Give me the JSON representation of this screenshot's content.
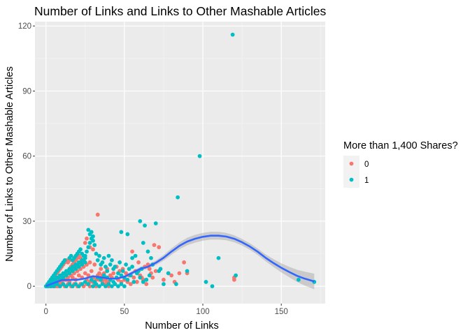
{
  "chart_data": {
    "type": "scatter",
    "title": "Number of Links and Links to Other Mashable Articles",
    "xlabel": "Number of Links",
    "ylabel": "Number of Links to Other Mashable Articles",
    "xlim": [
      -7,
      178
    ],
    "ylim": [
      -8,
      122
    ],
    "x_ticks": [
      0,
      50,
      100,
      150
    ],
    "y_ticks": [
      0,
      30,
      60,
      90,
      120
    ],
    "grid": true,
    "legend": {
      "title": "More than 1,400 Shares?",
      "position": "right",
      "entries": [
        {
          "label": "0",
          "color": "#F8766D"
        },
        {
          "label": "1",
          "color": "#00BFC4"
        }
      ]
    },
    "series": [
      {
        "name": "0",
        "color": "#F8766D",
        "points": [
          [
            1,
            0
          ],
          [
            2,
            1
          ],
          [
            3,
            2
          ],
          [
            4,
            3
          ],
          [
            5,
            4
          ],
          [
            6,
            5
          ],
          [
            7,
            6
          ],
          [
            8,
            7
          ],
          [
            9,
            8
          ],
          [
            10,
            9
          ],
          [
            11,
            10
          ],
          [
            12,
            11
          ],
          [
            13,
            12
          ],
          [
            2,
            0
          ],
          [
            4,
            1
          ],
          [
            6,
            2
          ],
          [
            8,
            3
          ],
          [
            10,
            4
          ],
          [
            12,
            5
          ],
          [
            14,
            6
          ],
          [
            16,
            7
          ],
          [
            18,
            8
          ],
          [
            20,
            9
          ],
          [
            22,
            10
          ],
          [
            5,
            1
          ],
          [
            7,
            0
          ],
          [
            9,
            2
          ],
          [
            11,
            1
          ],
          [
            13,
            3
          ],
          [
            15,
            2
          ],
          [
            17,
            4
          ],
          [
            19,
            3
          ],
          [
            21,
            5
          ],
          [
            23,
            4
          ],
          [
            25,
            6
          ],
          [
            27,
            5
          ],
          [
            29,
            7
          ],
          [
            14,
            11
          ],
          [
            15,
            12
          ],
          [
            16,
            9
          ],
          [
            17,
            10
          ],
          [
            18,
            11
          ],
          [
            19,
            12
          ],
          [
            20,
            13
          ],
          [
            21,
            14
          ],
          [
            22,
            13
          ],
          [
            23,
            12
          ],
          [
            24,
            11
          ],
          [
            26,
            3
          ],
          [
            28,
            2
          ],
          [
            30,
            4
          ],
          [
            32,
            3
          ],
          [
            34,
            6
          ],
          [
            36,
            5
          ],
          [
            38,
            3
          ],
          [
            40,
            2
          ],
          [
            42,
            4
          ],
          [
            44,
            1
          ],
          [
            46,
            3
          ],
          [
            48,
            2
          ],
          [
            25,
            20
          ],
          [
            26,
            22
          ],
          [
            28,
            18
          ],
          [
            30,
            17
          ],
          [
            33,
            33
          ],
          [
            31,
            10
          ],
          [
            35,
            8
          ],
          [
            37,
            6
          ],
          [
            39,
            8
          ],
          [
            41,
            5
          ],
          [
            43,
            6
          ],
          [
            30,
            2
          ],
          [
            31,
            1
          ],
          [
            32,
            0
          ],
          [
            33,
            5
          ],
          [
            34,
            3
          ],
          [
            35,
            4
          ],
          [
            36,
            2
          ],
          [
            37,
            3
          ],
          [
            38,
            1
          ],
          [
            39,
            2
          ],
          [
            40,
            0
          ],
          [
            50,
            3
          ],
          [
            52,
            2
          ],
          [
            54,
            1
          ],
          [
            56,
            4
          ],
          [
            58,
            2
          ],
          [
            60,
            5
          ],
          [
            62,
            3
          ],
          [
            64,
            1
          ],
          [
            66,
            8
          ],
          [
            68,
            4
          ],
          [
            70,
            7
          ],
          [
            55,
            16
          ],
          [
            59,
            11
          ],
          [
            63,
            9
          ],
          [
            69,
            19
          ],
          [
            72,
            18
          ],
          [
            75,
            3
          ],
          [
            78,
            6
          ],
          [
            80,
            5
          ],
          [
            82,
            2
          ],
          [
            85,
            6
          ],
          [
            88,
            11
          ],
          [
            90,
            6
          ],
          [
            120,
            3
          ],
          [
            120,
            4
          ],
          [
            45,
            9
          ],
          [
            47,
            7
          ],
          [
            49,
            8
          ],
          [
            51,
            6
          ],
          [
            53,
            5
          ],
          [
            57,
            7
          ],
          [
            61,
            4
          ],
          [
            65,
            10
          ],
          [
            67,
            6
          ],
          [
            3,
            1
          ],
          [
            5,
            2
          ],
          [
            7,
            3
          ],
          [
            9,
            4
          ],
          [
            11,
            5
          ],
          [
            13,
            6
          ],
          [
            15,
            7
          ],
          [
            17,
            8
          ],
          [
            19,
            9
          ],
          [
            21,
            10
          ],
          [
            23,
            11
          ],
          [
            6,
            0
          ],
          [
            8,
            1
          ],
          [
            10,
            2
          ],
          [
            12,
            3
          ],
          [
            14,
            4
          ],
          [
            16,
            5
          ],
          [
            18,
            6
          ],
          [
            20,
            7
          ],
          [
            22,
            8
          ],
          [
            24,
            9
          ],
          [
            26,
            10
          ],
          [
            28,
            11
          ],
          [
            4,
            0
          ],
          [
            6,
            1
          ],
          [
            8,
            0
          ],
          [
            10,
            1
          ],
          [
            12,
            0
          ],
          [
            14,
            1
          ],
          [
            16,
            0
          ],
          [
            18,
            1
          ],
          [
            20,
            0
          ],
          [
            22,
            1
          ],
          [
            24,
            0
          ],
          [
            26,
            1
          ],
          [
            28,
            0
          ]
        ]
      },
      {
        "name": "1",
        "color": "#00BFC4",
        "points": [
          [
            0,
            0
          ],
          [
            1,
            1
          ],
          [
            2,
            2
          ],
          [
            3,
            3
          ],
          [
            4,
            4
          ],
          [
            5,
            5
          ],
          [
            6,
            6
          ],
          [
            7,
            7
          ],
          [
            8,
            8
          ],
          [
            9,
            9
          ],
          [
            10,
            10
          ],
          [
            11,
            11
          ],
          [
            12,
            12
          ],
          [
            3,
            0
          ],
          [
            5,
            1
          ],
          [
            7,
            2
          ],
          [
            9,
            3
          ],
          [
            11,
            4
          ],
          [
            13,
            5
          ],
          [
            15,
            6
          ],
          [
            17,
            7
          ],
          [
            19,
            8
          ],
          [
            21,
            9
          ],
          [
            23,
            10
          ],
          [
            25,
            11
          ],
          [
            15,
            13
          ],
          [
            16,
            14
          ],
          [
            17,
            12
          ],
          [
            18,
            13
          ],
          [
            19,
            14
          ],
          [
            20,
            15
          ],
          [
            21,
            16
          ],
          [
            22,
            17
          ],
          [
            23,
            15
          ],
          [
            24,
            14
          ],
          [
            25,
            13
          ],
          [
            26,
            16
          ],
          [
            27,
            18
          ],
          [
            28,
            20
          ],
          [
            29,
            22
          ],
          [
            30,
            23
          ],
          [
            28,
            24
          ],
          [
            29,
            25
          ],
          [
            27,
            26
          ],
          [
            30,
            21
          ],
          [
            31,
            19
          ],
          [
            32,
            15
          ],
          [
            33,
            12
          ],
          [
            34,
            14
          ],
          [
            35,
            10
          ],
          [
            36,
            11
          ],
          [
            37,
            13
          ],
          [
            38,
            9
          ],
          [
            39,
            7
          ],
          [
            41,
            10
          ],
          [
            43,
            8
          ],
          [
            25,
            2
          ],
          [
            27,
            1
          ],
          [
            29,
            3
          ],
          [
            31,
            2
          ],
          [
            33,
            4
          ],
          [
            35,
            3
          ],
          [
            37,
            5
          ],
          [
            39,
            4
          ],
          [
            41,
            3
          ],
          [
            43,
            2
          ],
          [
            45,
            4
          ],
          [
            46,
            6
          ],
          [
            48,
            5
          ],
          [
            50,
            4
          ],
          [
            52,
            3
          ],
          [
            54,
            5
          ],
          [
            56,
            2
          ],
          [
            58,
            6
          ],
          [
            60,
            4
          ],
          [
            62,
            2
          ],
          [
            64,
            3
          ],
          [
            66,
            5
          ],
          [
            48,
            25
          ],
          [
            52,
            24
          ],
          [
            55,
            13
          ],
          [
            57,
            14
          ],
          [
            60,
            30
          ],
          [
            63,
            28
          ],
          [
            65,
            16
          ],
          [
            67,
            13
          ],
          [
            70,
            29
          ],
          [
            72,
            7
          ],
          [
            62,
            20
          ],
          [
            68,
            10
          ],
          [
            73,
            8
          ],
          [
            75,
            1
          ],
          [
            78,
            6
          ],
          [
            83,
            1
          ],
          [
            84,
            41
          ],
          [
            90,
            7
          ],
          [
            98,
            60
          ],
          [
            102,
            2
          ],
          [
            106,
            0
          ],
          [
            110,
            13
          ],
          [
            119,
            116
          ],
          [
            121,
            5
          ],
          [
            161,
            3
          ],
          [
            171,
            2
          ],
          [
            40,
            14
          ],
          [
            42,
            12
          ],
          [
            44,
            9
          ],
          [
            47,
            11
          ],
          [
            49,
            7
          ],
          [
            51,
            10
          ],
          [
            53,
            8
          ],
          [
            55,
            9
          ],
          [
            59,
            7
          ],
          [
            61,
            8
          ],
          [
            2,
            1
          ],
          [
            4,
            2
          ],
          [
            6,
            3
          ],
          [
            8,
            4
          ],
          [
            10,
            5
          ],
          [
            12,
            6
          ],
          [
            14,
            7
          ],
          [
            16,
            8
          ],
          [
            18,
            9
          ],
          [
            20,
            10
          ],
          [
            22,
            11
          ],
          [
            24,
            12
          ],
          [
            1,
            0
          ],
          [
            3,
            1
          ],
          [
            5,
            0
          ],
          [
            7,
            1
          ],
          [
            9,
            0
          ],
          [
            11,
            1
          ],
          [
            13,
            0
          ],
          [
            15,
            1
          ],
          [
            17,
            0
          ],
          [
            19,
            1
          ],
          [
            21,
            0
          ],
          [
            23,
            1
          ],
          [
            5,
            3
          ],
          [
            7,
            4
          ],
          [
            9,
            5
          ],
          [
            11,
            6
          ],
          [
            13,
            7
          ],
          [
            15,
            8
          ],
          [
            17,
            9
          ],
          [
            19,
            10
          ],
          [
            21,
            11
          ],
          [
            23,
            12
          ],
          [
            25,
            14
          ],
          [
            30,
            0
          ],
          [
            32,
            1
          ],
          [
            34,
            0
          ],
          [
            36,
            1
          ],
          [
            38,
            0
          ],
          [
            40,
            1
          ],
          [
            42,
            0
          ],
          [
            44,
            1
          ],
          [
            46,
            0
          ],
          [
            48,
            1
          ],
          [
            50,
            0
          ]
        ]
      }
    ],
    "smooth": {
      "color": "#3366FF",
      "band_color": "#999999",
      "x": [
        0,
        5,
        10,
        15,
        20,
        25,
        30,
        35,
        40,
        45,
        50,
        55,
        60,
        65,
        70,
        75,
        80,
        85,
        90,
        95,
        100,
        105,
        110,
        115,
        120,
        125,
        130,
        135,
        140,
        145,
        150,
        155,
        160,
        165,
        171
      ],
      "y": [
        0.1,
        1.5,
        2.8,
        2.9,
        3.0,
        3.6,
        4.6,
        4.1,
        3.6,
        3.5,
        4.4,
        6.2,
        8.0,
        9.0,
        10.8,
        13.1,
        16.0,
        18.6,
        20.6,
        21.9,
        22.8,
        23.3,
        23.3,
        22.9,
        21.9,
        20.3,
        18.3,
        15.9,
        13.1,
        10.7,
        8.5,
        6.6,
        4.8,
        3.5,
        2.2
      ],
      "se": [
        0.3,
        0.3,
        0.3,
        0.3,
        0.3,
        0.3,
        0.4,
        0.4,
        0.4,
        0.5,
        0.6,
        0.8,
        0.9,
        1.0,
        1.1,
        1.3,
        1.5,
        1.6,
        1.7,
        1.8,
        1.8,
        1.8,
        1.8,
        1.7,
        1.6,
        1.5,
        1.5,
        1.5,
        1.6,
        1.8,
        2.1,
        2.4,
        2.8,
        3.2,
        3.6
      ]
    }
  }
}
